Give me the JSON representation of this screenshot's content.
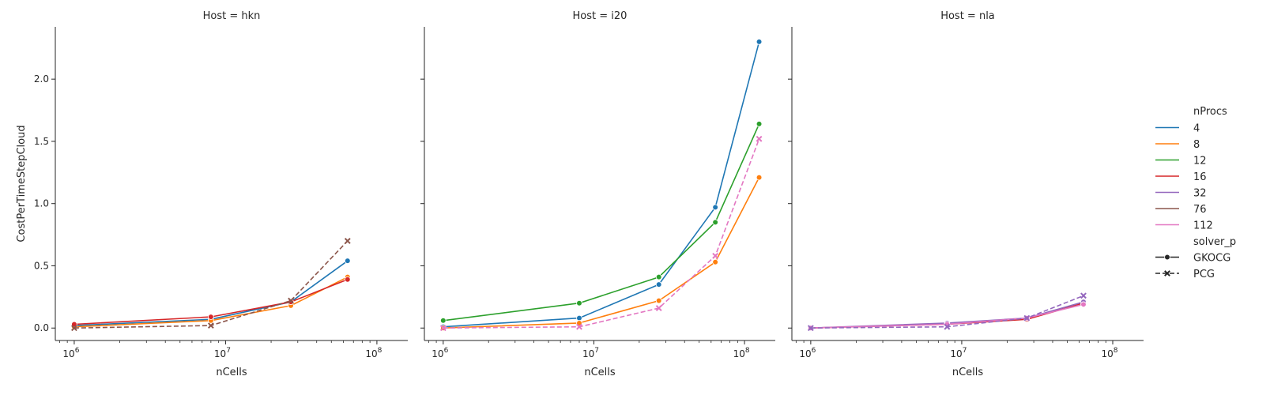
{
  "chart_data": {
    "type": "line",
    "x_scale": "log",
    "xlabel": "nCells",
    "ylabel": "CostPerTimeStepCloud",
    "xlim": [
      750000,
      160000000
    ],
    "ylim": [
      -0.1,
      2.42
    ],
    "x_ticks": [
      1000000,
      10000000,
      100000000
    ],
    "x_tick_labels": [
      {
        "base": "10",
        "exp": "6"
      },
      {
        "base": "10",
        "exp": "7"
      },
      {
        "base": "10",
        "exp": "8"
      }
    ],
    "y_ticks": [
      0.0,
      0.5,
      1.0,
      1.5,
      2.0
    ],
    "y_tick_labels": [
      "0.0",
      "0.5",
      "1.0",
      "1.5",
      "2.0"
    ],
    "grid": false,
    "legend": {
      "placement": "right",
      "hue_title": "nProcs",
      "hue": [
        {
          "label": "4",
          "color": "#1f77b4"
        },
        {
          "label": "8",
          "color": "#ff7f0e"
        },
        {
          "label": "12",
          "color": "#2ca02c"
        },
        {
          "label": "16",
          "color": "#d62728"
        },
        {
          "label": "32",
          "color": "#9467bd"
        },
        {
          "label": "76",
          "color": "#8c564b"
        },
        {
          "label": "112",
          "color": "#e377c2"
        }
      ],
      "style_title": "solver_p",
      "styles": [
        {
          "label": "GKOCG",
          "marker": "circle",
          "dash": "solid"
        },
        {
          "label": "PCG",
          "marker": "x",
          "dash": "dashed"
        }
      ]
    },
    "panels": [
      {
        "title": "Host = hkn",
        "series": [
          {
            "nProcs": "4",
            "solver": "GKOCG",
            "x": [
              1000000,
              8000000,
              27000000,
              64000000
            ],
            "y": [
              0.02,
              0.07,
              0.21,
              0.54
            ]
          },
          {
            "nProcs": "8",
            "solver": "GKOCG",
            "x": [
              1000000,
              8000000,
              27000000,
              64000000
            ],
            "y": [
              0.01,
              0.06,
              0.18,
              0.41
            ]
          },
          {
            "nProcs": "16",
            "solver": "GKOCG",
            "x": [
              1000000,
              8000000,
              27000000,
              64000000
            ],
            "y": [
              0.03,
              0.09,
              0.21,
              0.39
            ]
          },
          {
            "nProcs": "76",
            "solver": "PCG",
            "x": [
              1000000,
              8000000,
              27000000,
              64000000
            ],
            "y": [
              0.0,
              0.02,
              0.22,
              0.7
            ]
          }
        ]
      },
      {
        "title": "Host = i20",
        "series": [
          {
            "nProcs": "4",
            "solver": "GKOCG",
            "x": [
              1000000,
              8000000,
              27000000,
              64000000,
              125000000
            ],
            "y": [
              0.01,
              0.08,
              0.35,
              0.97,
              2.3
            ]
          },
          {
            "nProcs": "8",
            "solver": "GKOCG",
            "x": [
              1000000,
              8000000,
              27000000,
              64000000,
              125000000
            ],
            "y": [
              0.0,
              0.04,
              0.22,
              0.53,
              1.21
            ]
          },
          {
            "nProcs": "12",
            "solver": "GKOCG",
            "x": [
              1000000,
              8000000,
              27000000,
              64000000,
              125000000
            ],
            "y": [
              0.06,
              0.2,
              0.41,
              0.85,
              1.64
            ]
          },
          {
            "nProcs": "112",
            "solver": "PCG",
            "x": [
              1000000,
              8000000,
              27000000,
              64000000,
              125000000
            ],
            "y": [
              0.0,
              0.01,
              0.16,
              0.58,
              1.52
            ]
          }
        ]
      },
      {
        "title": "Host = nla",
        "series": [
          {
            "nProcs": "16",
            "solver": "GKOCG",
            "x": [
              1000000,
              8000000,
              27000000,
              64000000
            ],
            "y": [
              0.0,
              0.03,
              0.07,
              0.2
            ]
          },
          {
            "nProcs": "32",
            "solver": "GKOCG",
            "x": [
              1000000,
              8000000,
              27000000,
              64000000
            ],
            "y": [
              0.0,
              0.04,
              0.08,
              0.21
            ]
          },
          {
            "nProcs": "112",
            "solver": "GKOCG",
            "x": [
              1000000,
              8000000,
              27000000,
              64000000
            ],
            "y": [
              0.0,
              0.03,
              0.08,
              0.19
            ]
          },
          {
            "nProcs": "32",
            "solver": "PCG",
            "x": [
              1000000,
              8000000,
              27000000,
              64000000
            ],
            "y": [
              0.0,
              0.01,
              0.08,
              0.26
            ]
          }
        ]
      }
    ]
  }
}
